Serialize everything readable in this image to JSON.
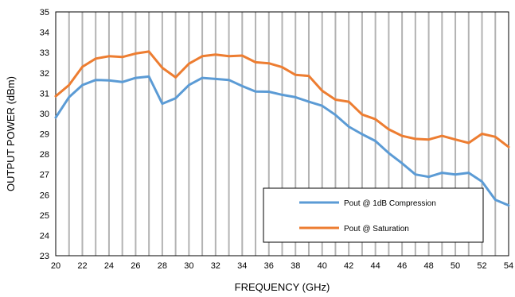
{
  "chart_data": {
    "type": "line",
    "title": "",
    "xlabel": "FREQUENCY (GHz)",
    "ylabel": "OUTPUT POWER (dBm)",
    "xlim": [
      20,
      54
    ],
    "ylim": [
      23,
      35
    ],
    "x_ticks": [
      20,
      22,
      24,
      26,
      28,
      30,
      32,
      34,
      36,
      38,
      40,
      42,
      44,
      46,
      48,
      50,
      52,
      54
    ],
    "y_ticks": [
      23,
      24,
      25,
      26,
      27,
      28,
      29,
      30,
      31,
      32,
      33,
      34,
      35
    ],
    "grid": "vertical",
    "legend_placement": "lower-right",
    "x": [
      20,
      21,
      22,
      23,
      24,
      25,
      26,
      27,
      28,
      29,
      30,
      31,
      32,
      33,
      34,
      35,
      36,
      37,
      38,
      39,
      40,
      41,
      42,
      43,
      44,
      45,
      46,
      47,
      48,
      49,
      50,
      51,
      52,
      53,
      54
    ],
    "series": [
      {
        "name": "Pout @ 1dB Compression",
        "color": "#5b9bd5",
        "values": [
          29.8,
          30.8,
          31.4,
          31.65,
          31.63,
          31.55,
          31.75,
          31.82,
          30.48,
          30.75,
          31.4,
          31.75,
          31.7,
          31.65,
          31.35,
          31.08,
          31.07,
          30.92,
          30.8,
          30.58,
          30.38,
          29.93,
          29.35,
          28.98,
          28.65,
          28.05,
          27.55,
          27.0,
          26.88,
          27.08,
          27.0,
          27.08,
          26.65,
          25.75,
          25.48
        ]
      },
      {
        "name": "Pout @ Saturation",
        "color": "#ed7d31",
        "values": [
          30.85,
          31.4,
          32.3,
          32.7,
          32.82,
          32.78,
          32.95,
          33.05,
          32.25,
          31.78,
          32.45,
          32.82,
          32.9,
          32.82,
          32.85,
          32.52,
          32.47,
          32.28,
          31.9,
          31.85,
          31.12,
          30.68,
          30.58,
          29.95,
          29.72,
          29.22,
          28.9,
          28.75,
          28.72,
          28.9,
          28.72,
          28.55,
          29.0,
          28.85,
          28.35
        ]
      }
    ]
  }
}
